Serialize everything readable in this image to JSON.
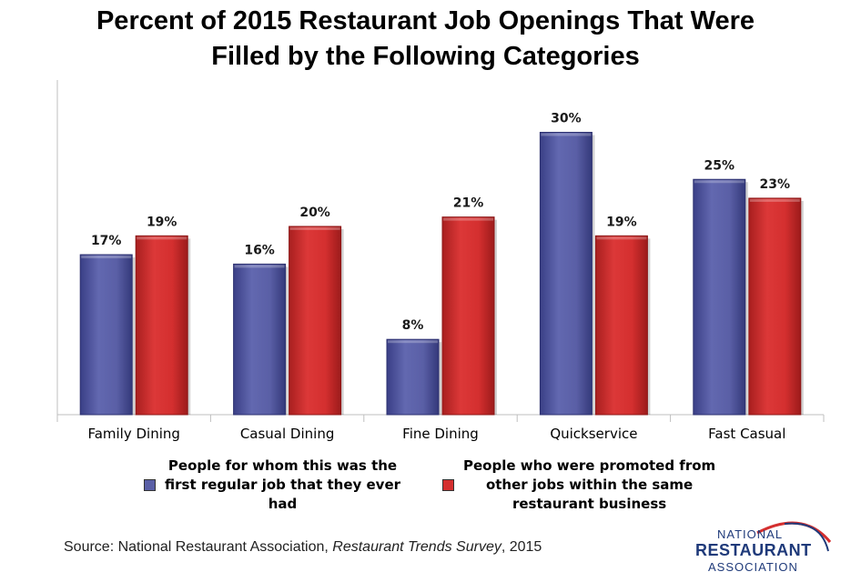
{
  "title_line1": "Percent of 2015 Restaurant Job Openings That Were",
  "title_line2": "Filled by the Following Categories",
  "colors": {
    "series1": "#5a5fa6",
    "series2": "#d42f2f",
    "axis": "#bfbfbf"
  },
  "chart_data": {
    "type": "bar",
    "categories": [
      "Family Dining",
      "Casual Dining",
      "Fine Dining",
      "Quickservice",
      "Fast Casual"
    ],
    "series": [
      {
        "name": "People for whom this was the first regular job that they ever had",
        "values": [
          17,
          16,
          8,
          30,
          25
        ],
        "labels": [
          "17%",
          "16%",
          "8%",
          "30%",
          "25%"
        ]
      },
      {
        "name": "People who were promoted from other jobs within the same restaurant business",
        "values": [
          19,
          20,
          21,
          19,
          23
        ],
        "labels": [
          "19%",
          "20%",
          "21%",
          "19%",
          "23%"
        ]
      }
    ],
    "ylim": [
      0,
      35
    ],
    "grid": false,
    "legend": "bottom"
  },
  "legend": {
    "item1": [
      "People for whom this was the",
      "first regular job that they ever",
      "had"
    ],
    "item2": [
      "People who were promoted from",
      "other jobs within the same",
      "restaurant business"
    ]
  },
  "source": {
    "prefix": "Source: National Restaurant Association, ",
    "italic": "Restaurant Trends Survey",
    "suffix": ", 2015"
  },
  "logo": {
    "line1": "NATIONAL",
    "line2": "RESTAURANT",
    "line3": "ASSOCIATION"
  }
}
